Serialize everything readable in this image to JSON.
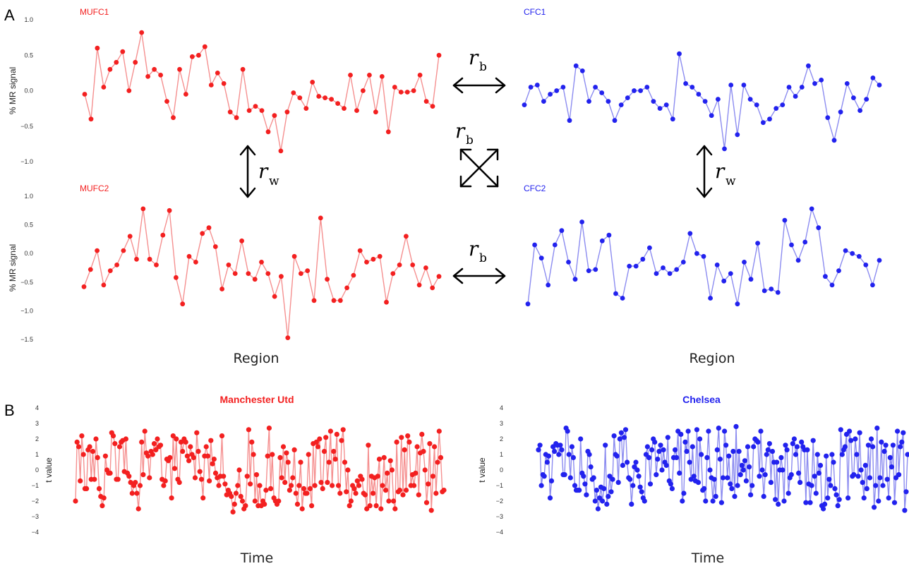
{
  "panels": {
    "A": "A",
    "B": "B"
  },
  "colors": {
    "red": "#f32020",
    "red_line": "#f59090",
    "blue": "#2222ee",
    "blue_line": "#8c8cf0"
  },
  "annotations": {
    "r_symbol": "r",
    "between_sub": "b",
    "within_sub": "w"
  },
  "chart_data": [
    {
      "type": "line",
      "title": "MUFC1",
      "color": "red",
      "ylabel": "% MR signal",
      "xlabel": "",
      "ylim": [
        -1.0,
        1.0
      ],
      "yticks": [
        "1.0",
        "0.5",
        "0.0",
        "-0.5",
        "-1.0"
      ],
      "values": [
        -0.05,
        -0.4,
        0.6,
        0.05,
        0.3,
        0.4,
        0.55,
        0.0,
        0.4,
        0.82,
        0.2,
        0.3,
        0.22,
        -0.15,
        -0.38,
        0.3,
        -0.05,
        0.48,
        0.5,
        0.62,
        0.08,
        0.25,
        0.1,
        -0.3,
        -0.38,
        0.3,
        -0.28,
        -0.22,
        -0.28,
        -0.58,
        -0.35,
        -0.85,
        -0.3,
        -0.03,
        -0.1,
        -0.25,
        0.12,
        -0.08,
        -0.1,
        -0.12,
        -0.18,
        -0.25,
        0.22,
        -0.28,
        0.0,
        0.22,
        -0.3,
        0.2,
        -0.58,
        0.05,
        -0.02,
        -0.02,
        0.0,
        0.22,
        -0.15,
        -0.22,
        0.5
      ]
    },
    {
      "type": "line",
      "title": "CFC1",
      "color": "blue",
      "ylabel": "",
      "xlabel": "",
      "ylim": [
        -1.0,
        1.0
      ],
      "yticks": [],
      "values": [
        -0.2,
        0.05,
        0.08,
        -0.15,
        -0.05,
        0.0,
        0.05,
        -0.42,
        0.35,
        0.28,
        -0.15,
        0.05,
        -0.03,
        -0.15,
        -0.42,
        -0.2,
        -0.1,
        0.0,
        0.0,
        0.05,
        -0.15,
        -0.25,
        -0.2,
        -0.4,
        0.52,
        0.1,
        0.05,
        -0.05,
        -0.15,
        -0.35,
        -0.12,
        -0.82,
        0.08,
        -0.62,
        0.08,
        -0.12,
        -0.2,
        -0.45,
        -0.4,
        -0.25,
        -0.2,
        0.05,
        -0.08,
        0.05,
        0.35,
        0.1,
        0.15,
        -0.38,
        -0.7,
        -0.3,
        0.1,
        -0.1,
        -0.28,
        -0.12,
        0.18,
        0.08
      ]
    },
    {
      "type": "line",
      "title": "MUFC2",
      "color": "red",
      "ylabel": "% MR signal",
      "xlabel": "Region",
      "ylim": [
        -1.5,
        1.0
      ],
      "yticks": [
        "1.0",
        "0.5",
        "0.0",
        "-0.5",
        "-1.0",
        "-1.5"
      ],
      "values": [
        -0.58,
        -0.28,
        0.05,
        -0.55,
        -0.3,
        -0.2,
        0.05,
        0.3,
        -0.1,
        0.78,
        -0.1,
        -0.2,
        0.32,
        0.75,
        -0.42,
        -0.88,
        -0.05,
        -0.15,
        0.35,
        0.45,
        0.12,
        -0.62,
        -0.2,
        -0.35,
        0.22,
        -0.35,
        -0.45,
        -0.15,
        -0.35,
        -0.75,
        -0.4,
        -1.47,
        -0.05,
        -0.35,
        -0.3,
        -0.82,
        0.62,
        -0.45,
        -0.82,
        -0.82,
        -0.6,
        -0.38,
        0.05,
        -0.15,
        -0.1,
        -0.05,
        -0.85,
        -0.35,
        -0.2,
        0.3,
        -0.2,
        -0.55,
        -0.25,
        -0.6,
        -0.4
      ]
    },
    {
      "type": "line",
      "title": "CFC2",
      "color": "blue",
      "ylabel": "",
      "xlabel": "Region",
      "ylim": [
        -1.5,
        1.0
      ],
      "yticks": [],
      "values": [
        -0.88,
        0.15,
        -0.08,
        -0.55,
        0.15,
        0.4,
        -0.15,
        -0.45,
        0.55,
        -0.3,
        -0.28,
        0.22,
        0.32,
        -0.7,
        -0.78,
        -0.22,
        -0.22,
        -0.1,
        0.1,
        -0.35,
        -0.25,
        -0.35,
        -0.28,
        -0.15,
        0.35,
        0.0,
        -0.05,
        -0.78,
        -0.2,
        -0.48,
        -0.35,
        -0.88,
        -0.15,
        -0.45,
        0.18,
        -0.65,
        -0.62,
        -0.68,
        0.58,
        0.15,
        -0.12,
        0.2,
        0.78,
        0.45,
        -0.4,
        -0.55,
        -0.3,
        0.05,
        0.0,
        -0.05,
        -0.2,
        -0.55,
        -0.12
      ]
    },
    {
      "type": "line",
      "title": "Manchester Utd",
      "color": "red",
      "ylabel": "t value",
      "xlabel": "Time",
      "ylim": [
        -4,
        4
      ],
      "yticks": [
        "4",
        "3",
        "2",
        "1",
        "0",
        "-1",
        "-2",
        "-3",
        "-4"
      ],
      "values": [
        -2.0,
        1.8,
        1.5,
        -0.7,
        2.2,
        1.0,
        -1.2,
        -1.2,
        1.3,
        1.5,
        -0.6,
        1.2,
        -0.6,
        2.0,
        0.8,
        -1.2,
        -1.7,
        -2.3,
        -1.8,
        0.9,
        0.0,
        -0.2,
        -0.2,
        2.4,
        2.2,
        1.7,
        -0.6,
        -0.6,
        1.5,
        1.8,
        1.9,
        -0.1,
        2.0,
        -0.2,
        -0.4,
        -0.8,
        -1.5,
        -1.0,
        -0.8,
        -1.5,
        -2.5,
        -1.0,
        1.8,
        -0.3,
        2.5,
        1.1,
        0.9,
        -0.5,
        1.2,
        1.0,
        1.7,
        1.3,
        2.0,
        1.5,
        1.6,
        -0.6,
        -1.0,
        -0.7,
        0.7,
        0.6,
        0.8,
        -1.8,
        2.2,
        0.1,
        2.0,
        -0.6,
        -0.8,
        1.8,
        1.2,
        2.0,
        1.8,
        0.9,
        0.6,
        1.5,
        1.0,
        0.8,
        -0.5,
        2.4,
        1.2,
        -0.1,
        -0.6,
        -1.8,
        0.9,
        1.5,
        0.9,
        -0.7,
        1.9,
        0.4,
        0.7,
        -0.2,
        -0.5,
        -1.0,
        -0.4,
        2.2,
        -0.4,
        -0.9,
        -1.6,
        -1.3,
        -1.5,
        -1.7,
        -2.7,
        -2.2,
        -1.5,
        -1.0,
        0.0,
        -1.7,
        -2.0,
        -2.5,
        -2.3,
        -0.4,
        2.6,
        -0.9,
        1.8,
        1.0,
        -2.0,
        -0.3,
        -2.3,
        -1.0,
        -2.3,
        -2.0,
        -2.2,
        -1.3,
        0.9,
        2.7,
        -1.2,
        1.0,
        -1.8,
        -2.0,
        -2.2,
        -2.0,
        0.8,
        -0.5,
        1.5,
        -0.8,
        1.1,
        0.5,
        -1.3,
        -1.0,
        -0.5,
        1.3,
        -1.5,
        -2.2,
        -1.0,
        0.5,
        -2.5,
        -1.2,
        -1.5,
        -1.5,
        1.0,
        -1.2,
        -2.3,
        1.7,
        -1.0,
        1.8,
        1.5,
        2.0,
        -0.8,
        -1.2,
        1.2,
        2.1,
        -0.8,
        0.5,
        2.5,
        -1.0,
        1.2,
        0.7,
        2.3,
        -1.0,
        -1.5,
        1.9,
        2.6,
        0.5,
        -1.4,
        0.0,
        -2.3,
        -2.0,
        -1.0,
        -1.2,
        -1.5,
        -0.7,
        -1.0,
        -0.4,
        -0.6,
        -1.5,
        -1.6,
        -2.5,
        1.6,
        -2.3,
        -0.4,
        -1.5,
        -0.5,
        -2.3,
        -0.4,
        0.7,
        -2.5,
        -1.0,
        0.8,
        -1.3,
        -0.2,
        -2.0,
        0.6,
        0.0,
        -2.0,
        -2.5,
        1.8,
        -1.4,
        -1.3,
        2.1,
        -1.6,
        1.3,
        -1.3,
        2.2,
        1.8,
        -1.0,
        -0.3,
        -1.0,
        -0.2,
        1.5,
        -1.6,
        1.1,
        2.3,
        1.2,
        0.0,
        -2.1,
        -0.9,
        1.7,
        -2.6,
        -0.4,
        1.5,
        -1.5,
        0.5,
        2.5,
        0.8,
        -1.4,
        -1.3
      ]
    },
    {
      "type": "line",
      "title": "Chelsea",
      "color": "blue",
      "ylabel": "t value",
      "xlabel": "Time",
      "ylim": [
        -4,
        4
      ],
      "yticks": [
        "4",
        "3",
        "2",
        "1",
        "0",
        "-1",
        "-2",
        "-3",
        "-4"
      ],
      "values": [
        1.3,
        1.6,
        -1.0,
        -0.3,
        -0.4,
        1.0,
        0.5,
        0.9,
        -1.8,
        -0.7,
        1.5,
        1.2,
        1.7,
        1.6,
        1.0,
        1.6,
        1.3,
        -0.3,
        -0.3,
        2.7,
        2.5,
        1.0,
        -0.5,
        1.5,
        0.8,
        -1.0,
        -1.3,
        -1.3,
        -1.3,
        2.0,
        -0.2,
        -0.4,
        -0.9,
        -1.6,
        1.2,
        1.0,
        0.2,
        -0.6,
        -0.5,
        -2.0,
        -1.3,
        -2.5,
        -1.8,
        -1.1,
        -2.0,
        -1.2,
        1.6,
        -2.2,
        -1.7,
        -0.4,
        -1.4,
        -0.6,
        2.2,
        1.0,
        0.9,
        -0.8,
        2.0,
        2.4,
        0.3,
        2.1,
        2.6,
        0.5,
        -0.5,
        -0.6,
        -2.2,
        -1.0,
        0.2,
        0.5,
        0.0,
        -0.4,
        -1.1,
        -1.4,
        -1.8,
        -2.0,
        1.0,
        1.5,
        0.8,
        -0.9,
        1.3,
        2.0,
        1.8,
        -0.3,
        0.7,
        1.2,
        1.6,
        0.0,
        1.3,
        0.5,
        0.3,
        2.1,
        -0.7,
        -0.9,
        -1.2,
        0.8,
        1.3,
        0.8,
        2.5,
        -0.2,
        2.3,
        -2.0,
        -1.5,
        1.8,
        1.2,
        2.5,
        0.5,
        -0.6,
        1.5,
        -0.4,
        -0.7,
        2.6,
        -0.8,
        2.0,
        1.0,
        -1.3,
        -1.2,
        -2.0,
        0.8,
        2.5,
        0.0,
        -0.5,
        -2.0,
        -0.6,
        -1.7,
        1.3,
        2.7,
        0.7,
        -2.1,
        -0.5,
        2.5,
        1.6,
        -0.5,
        0.9,
        -0.9,
        -1.2,
        1.2,
        -1.7,
        2.8,
        -1.0,
        1.2,
        -0.3,
        0.3,
        0.0,
        0.6,
        -0.7,
        1.5,
        0.2,
        -1.6,
        -1.0,
        1.5,
        2.0,
        1.9,
        1.8,
        -0.4,
        2.5,
        0.0,
        -1.7,
        -0.3,
        1.0,
        1.3,
        1.7,
        -0.8,
        1.2,
        0.5,
        -1.9,
        0.5,
        -2.2,
        0.0,
        0.8,
        0.0,
        -2.0,
        1.6,
        1.3,
        -1.5,
        -0.5,
        -0.3,
        1.7,
        2.0,
        1.0,
        1.5,
        -0.2,
        -0.8,
        1.8,
        1.5,
        1.3,
        -2.1,
        1.3,
        -0.9,
        -2.1,
        -1.0,
        1.9,
        -0.4,
        -1.5,
        1.0,
        -0.2,
        0.3,
        -2.3,
        -2.5,
        -2.2,
        0.9,
        -1.8,
        -0.6,
        -1.0,
        1.0,
        0.5,
        -1.2,
        -1.6,
        -2.3,
        -1.9,
        2.6,
        1.0,
        1.3,
        1.5,
        2.3,
        -1.8,
        2.5,
        1.9,
        -0.4,
        -0.3,
        2.0,
        1.0,
        -0.4,
        2.4,
        0.0,
        -0.8,
        -1.8,
        0.3,
        -1.2,
        1.6,
        -0.5,
        2.0,
        1.5,
        -2.4,
        -1.0,
        2.7,
        -2.0,
        -0.5,
        1.8,
        -1.0,
        1.2,
        1.6,
        -0.6,
        -1.8,
        0.8,
        0.2,
        1.6,
        -2.1,
        -0.5,
        2.5,
        -0.3,
        1.5,
        1.8,
        2.4,
        -2.6,
        -1.4,
        1.0
      ]
    }
  ]
}
